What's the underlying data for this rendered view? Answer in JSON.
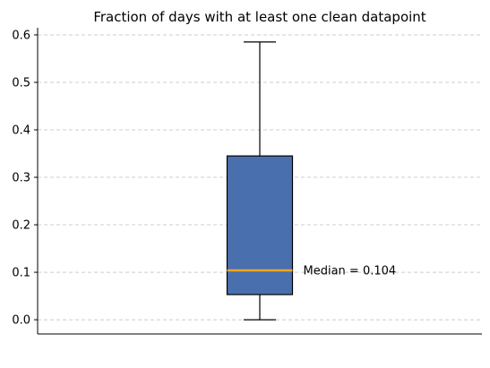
{
  "chart_data": {
    "type": "box",
    "title": "Fraction of days with at least one clean datapoint",
    "xlabel": "",
    "ylabel": "",
    "ylim": [
      -0.03,
      0.615
    ],
    "yticks": [
      0.0,
      0.1,
      0.2,
      0.3,
      0.4,
      0.5,
      0.6
    ],
    "ytick_labels": [
      "0.0",
      "0.1",
      "0.2",
      "0.3",
      "0.4",
      "0.5",
      "0.6"
    ],
    "grid": "y-dashed",
    "box": {
      "min": 0.0,
      "q1": 0.053,
      "median": 0.104,
      "q3": 0.345,
      "max": 0.585
    },
    "annotation": "Median = 0.104",
    "colors": {
      "box_fill": "#4a6fae",
      "median_line": "#f5a623",
      "grid": "#cccccc"
    }
  }
}
